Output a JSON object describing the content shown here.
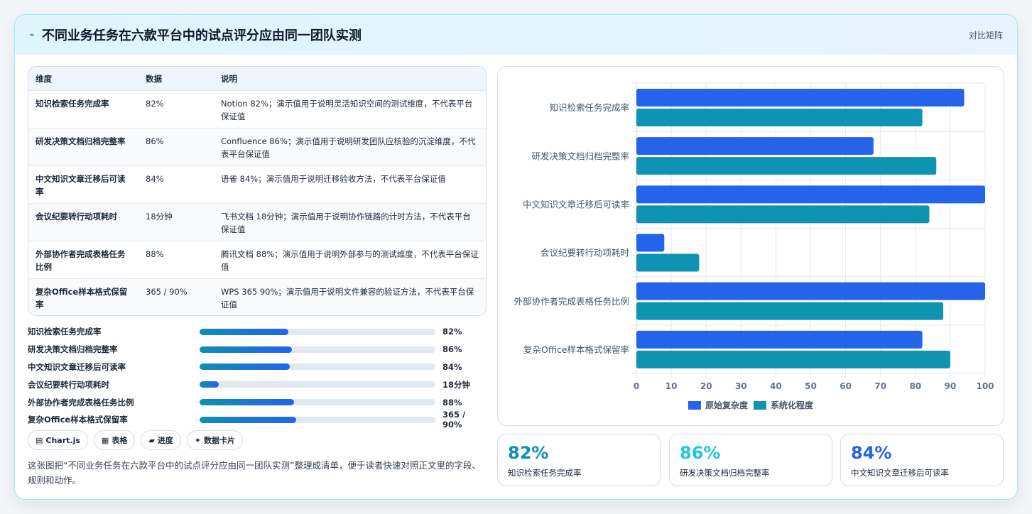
{
  "header": {
    "icon": "sparkline-icon",
    "title": "不同业务任务在六款平台中的试点评分应由同一团队实测",
    "tag": "对比矩阵"
  },
  "table": {
    "columns": [
      "维度",
      "数据",
      "说明"
    ],
    "rows": [
      {
        "dim": "知识检索任务完成率",
        "data": "82%",
        "desc": "Notion 82%；演示值用于说明灵活知识空间的测试维度，不代表平台保证值"
      },
      {
        "dim": "研发决策文档归档完整率",
        "data": "86%",
        "desc": "Confluence 86%；演示值用于说明研发团队应核验的沉淀维度，不代表平台保证值"
      },
      {
        "dim": "中文知识文章迁移后可读率",
        "data": "84%",
        "desc": "语雀 84%；演示值用于说明迁移验收方法，不代表平台保证值"
      },
      {
        "dim": "会议纪要转行动项耗时",
        "data": "18分钟",
        "desc": "飞书文档 18分钟；演示值用于说明协作链路的计时方法，不代表平台保证值"
      },
      {
        "dim": "外部协作者完成表格任务比例",
        "data": "88%",
        "desc": "腾讯文档 88%；演示值用于说明外部参与的测试维度，不代表平台保证值"
      },
      {
        "dim": "复杂Office样本格式保留率",
        "data": "365 / 90%",
        "desc": "WPS 365 90%；演示值用于说明文件兼容的验证方法，不代表平台保证值"
      }
    ]
  },
  "progress": [
    {
      "label": "知识检索任务完成率",
      "value": "82%",
      "fraction": 0.375
    },
    {
      "label": "研发决策文档归档完整率",
      "value": "86%",
      "fraction": 0.393
    },
    {
      "label": "中文知识文章迁移后可读率",
      "value": "84%",
      "fraction": 0.384
    },
    {
      "label": "会议纪要转行动项耗时",
      "value": "18分钟",
      "fraction": 0.082
    },
    {
      "label": "外部协作者完成表格任务比例",
      "value": "88%",
      "fraction": 0.402
    },
    {
      "label": "复杂Office样本格式保留率",
      "value": "365 / 90%",
      "fraction": 0.411
    }
  ],
  "pills": [
    {
      "icon": "chart-icon",
      "glyph": "▤",
      "label": "Chart.js"
    },
    {
      "icon": "table-icon",
      "glyph": "▦",
      "label": "表格"
    },
    {
      "icon": "progress-icon",
      "glyph": "▰",
      "label": "进度"
    },
    {
      "icon": "sparkle-icon",
      "glyph": "✦",
      "label": "数据卡片"
    }
  ],
  "note": "这张图把“不同业务任务在六款平台中的试点评分应由同一团队实测”整理成清单，便于读者快速对照正文里的字段、规则和动作。",
  "kpis": [
    {
      "value": "82%",
      "label": "知识检索任务完成率",
      "color": "#0e8fb0"
    },
    {
      "value": "86%",
      "label": "研发决策文档归档完整率",
      "color": "#22c7e0"
    },
    {
      "value": "84%",
      "label": "中文知识文章迁移后可读率",
      "color": "#2563eb"
    }
  ],
  "chart_data": {
    "type": "bar",
    "orientation": "horizontal",
    "categories": [
      "知识检索任务完成率",
      "研发决策文档归档完整率",
      "中文知识文章迁移后可读率",
      "会议纪要转行动项耗时",
      "外部协作者完成表格任务比例",
      "复杂Office样本格式保留率"
    ],
    "series": [
      {
        "name": "原始复杂度",
        "color": "#2563eb",
        "values": [
          94,
          68,
          100,
          8,
          100,
          82
        ]
      },
      {
        "name": "系统化程度",
        "color": "#0e93b3",
        "values": [
          82,
          86,
          84,
          18,
          88,
          90
        ]
      }
    ],
    "xlim": [
      0,
      100
    ],
    "xticks": [
      0,
      10,
      20,
      30,
      40,
      50,
      60,
      70,
      80,
      90,
      100
    ],
    "grid": true,
    "legend": "bottom"
  }
}
